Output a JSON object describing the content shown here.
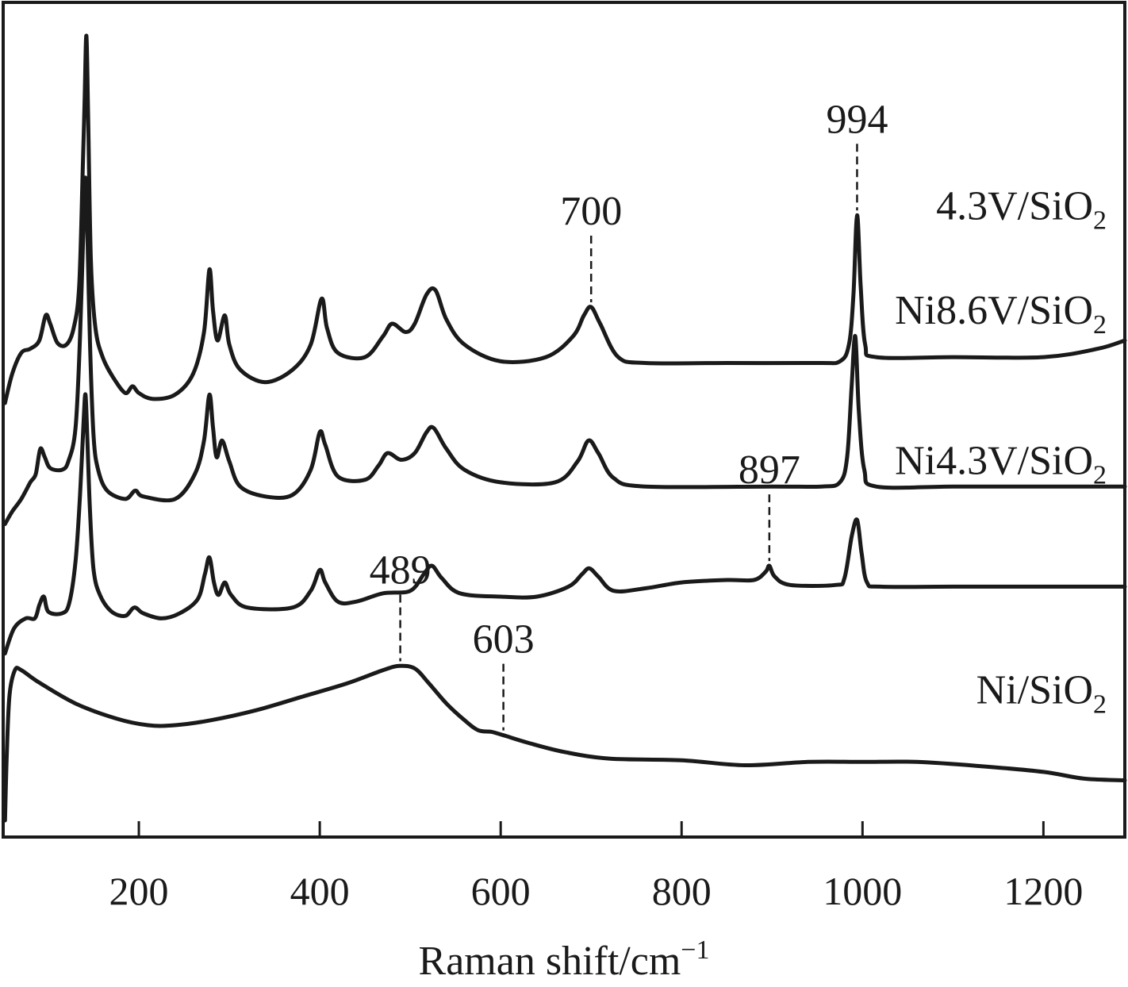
{
  "chart_data": {
    "type": "line",
    "title": "",
    "xlabel": "Raman shift/cm",
    "xlabel_superscript": "−1",
    "ylabel": "",
    "xlim": [
      50,
      1290
    ],
    "x_ticks": [
      200,
      400,
      600,
      800,
      1000,
      1200
    ],
    "grid": false,
    "legend": "none",
    "line_color": "#1a1a1a",
    "series": [
      {
        "name": "4.3V/SiO",
        "name_subscript": "2",
        "label_y": 5.2,
        "offset": 3.0,
        "points": [
          [
            52,
            0.0
          ],
          [
            60,
            0.35
          ],
          [
            70,
            0.6
          ],
          [
            80,
            0.65
          ],
          [
            90,
            0.75
          ],
          [
            97,
            1.05
          ],
          [
            102,
            0.95
          ],
          [
            110,
            0.72
          ],
          [
            120,
            0.7
          ],
          [
            128,
            0.9
          ],
          [
            134,
            1.4
          ],
          [
            138,
            2.8
          ],
          [
            140,
            3.6
          ],
          [
            142,
            4.4
          ],
          [
            144,
            3.4
          ],
          [
            147,
            1.7
          ],
          [
            152,
            0.9
          ],
          [
            160,
            0.55
          ],
          [
            172,
            0.3
          ],
          [
            185,
            0.12
          ],
          [
            193,
            0.2
          ],
          [
            200,
            0.12
          ],
          [
            215,
            0.05
          ],
          [
            240,
            0.1
          ],
          [
            260,
            0.35
          ],
          [
            272,
            0.85
          ],
          [
            278,
            1.6
          ],
          [
            282,
            1.1
          ],
          [
            287,
            0.75
          ],
          [
            295,
            1.05
          ],
          [
            300,
            0.7
          ],
          [
            312,
            0.4
          ],
          [
            340,
            0.25
          ],
          [
            370,
            0.4
          ],
          [
            390,
            0.7
          ],
          [
            402,
            1.25
          ],
          [
            408,
            0.9
          ],
          [
            420,
            0.6
          ],
          [
            450,
            0.55
          ],
          [
            470,
            0.8
          ],
          [
            480,
            0.95
          ],
          [
            495,
            0.85
          ],
          [
            505,
            0.95
          ],
          [
            518,
            1.3
          ],
          [
            528,
            1.35
          ],
          [
            540,
            1.0
          ],
          [
            560,
            0.7
          ],
          [
            600,
            0.5
          ],
          [
            650,
            0.55
          ],
          [
            680,
            0.8
          ],
          [
            692,
            1.05
          ],
          [
            700,
            1.15
          ],
          [
            710,
            0.95
          ],
          [
            730,
            0.55
          ],
          [
            760,
            0.48
          ],
          [
            850,
            0.48
          ],
          [
            950,
            0.48
          ],
          [
            975,
            0.5
          ],
          [
            985,
            0.7
          ],
          [
            990,
            1.3
          ],
          [
            994,
            2.25
          ],
          [
            998,
            1.4
          ],
          [
            1003,
            0.7
          ],
          [
            1015,
            0.55
          ],
          [
            1100,
            0.55
          ],
          [
            1200,
            0.55
          ],
          [
            1260,
            0.65
          ],
          [
            1290,
            0.75
          ]
        ]
      },
      {
        "name": "Ni8.6V/SiO",
        "name_subscript": "2",
        "label_y": 3.95,
        "offset": 1.5,
        "points": [
          [
            52,
            0.05
          ],
          [
            60,
            0.2
          ],
          [
            70,
            0.35
          ],
          [
            80,
            0.55
          ],
          [
            86,
            0.65
          ],
          [
            91,
            0.95
          ],
          [
            96,
            0.85
          ],
          [
            102,
            0.72
          ],
          [
            115,
            0.7
          ],
          [
            122,
            0.8
          ],
          [
            130,
            1.2
          ],
          [
            135,
            2.3
          ],
          [
            139,
            3.7
          ],
          [
            141,
            4.2
          ],
          [
            143,
            3.6
          ],
          [
            146,
            2.2
          ],
          [
            150,
            1.1
          ],
          [
            155,
            0.7
          ],
          [
            165,
            0.45
          ],
          [
            185,
            0.35
          ],
          [
            196,
            0.45
          ],
          [
            205,
            0.38
          ],
          [
            240,
            0.35
          ],
          [
            262,
            0.65
          ],
          [
            272,
            1.05
          ],
          [
            278,
            1.6
          ],
          [
            282,
            1.2
          ],
          [
            286,
            0.85
          ],
          [
            292,
            1.05
          ],
          [
            300,
            0.8
          ],
          [
            312,
            0.5
          ],
          [
            340,
            0.38
          ],
          [
            370,
            0.4
          ],
          [
            390,
            0.7
          ],
          [
            400,
            1.15
          ],
          [
            406,
            1.0
          ],
          [
            420,
            0.62
          ],
          [
            450,
            0.58
          ],
          [
            465,
            0.75
          ],
          [
            475,
            0.9
          ],
          [
            490,
            0.82
          ],
          [
            505,
            0.9
          ],
          [
            518,
            1.15
          ],
          [
            526,
            1.2
          ],
          [
            540,
            0.95
          ],
          [
            560,
            0.7
          ],
          [
            600,
            0.55
          ],
          [
            660,
            0.55
          ],
          [
            685,
            0.8
          ],
          [
            697,
            1.05
          ],
          [
            708,
            0.9
          ],
          [
            725,
            0.6
          ],
          [
            760,
            0.5
          ],
          [
            900,
            0.5
          ],
          [
            955,
            0.5
          ],
          [
            975,
            0.55
          ],
          [
            983,
            0.85
          ],
          [
            988,
            1.7
          ],
          [
            992,
            2.3
          ],
          [
            996,
            1.4
          ],
          [
            1002,
            0.7
          ],
          [
            1015,
            0.5
          ],
          [
            1100,
            0.5
          ],
          [
            1200,
            0.5
          ],
          [
            1290,
            0.5
          ]
        ]
      },
      {
        "name": "Ni4.3V/SiO",
        "name_subscript": "2",
        "label_y": 2.15,
        "offset": 0.0,
        "points": [
          [
            52,
            0.0
          ],
          [
            62,
            0.3
          ],
          [
            75,
            0.42
          ],
          [
            85,
            0.42
          ],
          [
            90,
            0.58
          ],
          [
            95,
            0.68
          ],
          [
            100,
            0.5
          ],
          [
            115,
            0.48
          ],
          [
            123,
            0.6
          ],
          [
            130,
            1.1
          ],
          [
            135,
            1.9
          ],
          [
            139,
            2.8
          ],
          [
            141,
            3.1
          ],
          [
            143,
            2.6
          ],
          [
            146,
            1.7
          ],
          [
            150,
            1.0
          ],
          [
            157,
            0.7
          ],
          [
            170,
            0.5
          ],
          [
            185,
            0.45
          ],
          [
            195,
            0.55
          ],
          [
            205,
            0.48
          ],
          [
            225,
            0.42
          ],
          [
            245,
            0.48
          ],
          [
            265,
            0.65
          ],
          [
            273,
            0.95
          ],
          [
            278,
            1.15
          ],
          [
            283,
            0.85
          ],
          [
            288,
            0.7
          ],
          [
            295,
            0.85
          ],
          [
            302,
            0.7
          ],
          [
            320,
            0.55
          ],
          [
            370,
            0.55
          ],
          [
            390,
            0.75
          ],
          [
            400,
            1.0
          ],
          [
            406,
            0.85
          ],
          [
            420,
            0.62
          ],
          [
            440,
            0.62
          ],
          [
            470,
            0.72
          ],
          [
            500,
            0.75
          ],
          [
            515,
            0.95
          ],
          [
            524,
            1.05
          ],
          [
            535,
            0.9
          ],
          [
            555,
            0.72
          ],
          [
            600,
            0.68
          ],
          [
            640,
            0.68
          ],
          [
            675,
            0.8
          ],
          [
            690,
            0.95
          ],
          [
            698,
            1.02
          ],
          [
            708,
            0.92
          ],
          [
            725,
            0.75
          ],
          [
            760,
            0.78
          ],
          [
            800,
            0.85
          ],
          [
            850,
            0.88
          ],
          [
            880,
            0.88
          ],
          [
            893,
            0.98
          ],
          [
            897,
            1.05
          ],
          [
            903,
            0.92
          ],
          [
            920,
            0.82
          ],
          [
            970,
            0.82
          ],
          [
            980,
            0.9
          ],
          [
            988,
            1.4
          ],
          [
            994,
            1.6
          ],
          [
            999,
            1.2
          ],
          [
            1005,
            0.85
          ],
          [
            1020,
            0.8
          ],
          [
            1100,
            0.8
          ],
          [
            1200,
            0.8
          ],
          [
            1290,
            0.8
          ]
        ]
      },
      {
        "name": "Ni/SiO",
        "name_subscript": "2",
        "label_y": -0.6,
        "offset": 0.0,
        "points": [
          [
            52,
            -2.0
          ],
          [
            54,
            -1.2
          ],
          [
            57,
            -0.5
          ],
          [
            63,
            -0.2
          ],
          [
            70,
            -0.2
          ],
          [
            90,
            -0.35
          ],
          [
            130,
            -0.6
          ],
          [
            175,
            -0.78
          ],
          [
            210,
            -0.86
          ],
          [
            240,
            -0.86
          ],
          [
            280,
            -0.8
          ],
          [
            330,
            -0.68
          ],
          [
            380,
            -0.52
          ],
          [
            430,
            -0.36
          ],
          [
            470,
            -0.2
          ],
          [
            488,
            -0.15
          ],
          [
            505,
            -0.18
          ],
          [
            520,
            -0.35
          ],
          [
            540,
            -0.6
          ],
          [
            560,
            -0.8
          ],
          [
            575,
            -0.92
          ],
          [
            590,
            -0.94
          ],
          [
            603,
            -0.98
          ],
          [
            630,
            -1.07
          ],
          [
            670,
            -1.18
          ],
          [
            720,
            -1.26
          ],
          [
            800,
            -1.28
          ],
          [
            870,
            -1.34
          ],
          [
            940,
            -1.3
          ],
          [
            1000,
            -1.3
          ],
          [
            1060,
            -1.3
          ],
          [
            1130,
            -1.35
          ],
          [
            1200,
            -1.42
          ],
          [
            1245,
            -1.5
          ],
          [
            1290,
            -1.52
          ]
        ]
      }
    ],
    "annotations": [
      {
        "text": "994",
        "x": 994,
        "series_index": 0
      },
      {
        "text": "700",
        "x": 700,
        "series_index": 0
      },
      {
        "text": "897",
        "x": 897,
        "series_index": 2
      },
      {
        "text": "489",
        "x": 489,
        "series_index": 3
      },
      {
        "text": "603",
        "x": 603,
        "series_index": 3
      }
    ]
  }
}
